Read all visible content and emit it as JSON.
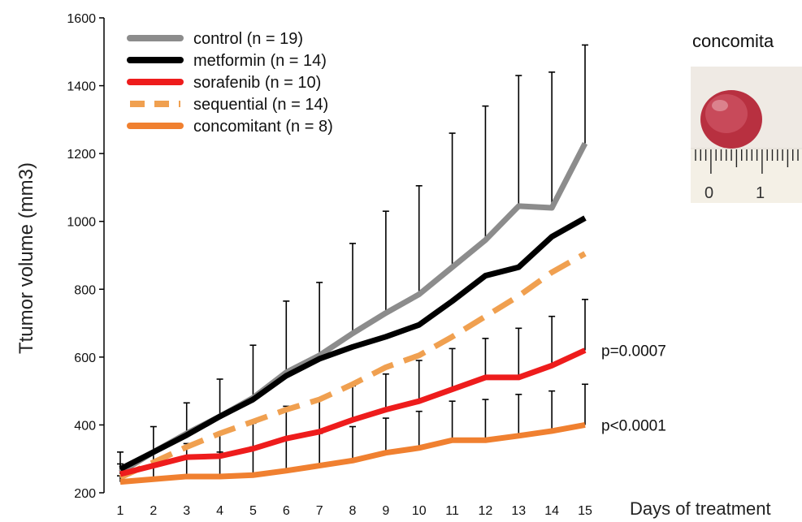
{
  "chart_data": {
    "type": "line",
    "title": "",
    "xlabel": "Days of treatment",
    "ylabel": "Ttumor volume (mm3)",
    "x": [
      1,
      2,
      3,
      4,
      5,
      6,
      7,
      8,
      9,
      10,
      11,
      12,
      13,
      14,
      15
    ],
    "xlim": [
      1,
      15
    ],
    "ylim": [
      200,
      1600
    ],
    "yticks": [
      200,
      400,
      600,
      800,
      1000,
      1200,
      1400,
      1600
    ],
    "grid": false,
    "legend_position": "top-left",
    "series": [
      {
        "name": "control (n = 19)",
        "color": "#8c8c8c",
        "style": "solid",
        "values": [
          260,
          320,
          375,
          425,
          480,
          555,
          605,
          670,
          730,
          785,
          865,
          945,
          1045,
          1040,
          1230
        ],
        "error_upper": [
          320,
          395,
          465,
          535,
          635,
          765,
          820,
          935,
          1030,
          1105,
          1260,
          1340,
          1430,
          1440,
          1520
        ]
      },
      {
        "name": "metformin (n = 14)",
        "color": "#000000",
        "style": "solid",
        "values": [
          270,
          320,
          370,
          425,
          475,
          545,
          595,
          630,
          660,
          695,
          765,
          840,
          865,
          955,
          1010
        ],
        "error_upper": null
      },
      {
        "name": "sorafenib (n = 10)",
        "color": "#ee1c1c",
        "style": "solid",
        "values": [
          255,
          280,
          305,
          308,
          330,
          360,
          380,
          415,
          445,
          470,
          505,
          540,
          540,
          575,
          620
        ],
        "error_upper": [
          285,
          320,
          345,
          375,
          405,
          455,
          475,
          515,
          550,
          590,
          625,
          655,
          685,
          720,
          770
        ]
      },
      {
        "name": "sequential (n = 14)",
        "color": "#f0a050",
        "style": "dashed",
        "values": [
          245,
          290,
          335,
          375,
          410,
          445,
          475,
          520,
          570,
          605,
          660,
          720,
          780,
          850,
          905
        ],
        "error_upper": null
      },
      {
        "name": "concomitant (n = 8)",
        "color": "#f08030",
        "style": "solid",
        "values": [
          232,
          240,
          248,
          248,
          252,
          265,
          280,
          295,
          318,
          332,
          355,
          355,
          368,
          382,
          400
        ],
        "error_upper": [
          250,
          280,
          300,
          320,
          335,
          360,
          375,
          395,
          420,
          440,
          470,
          475,
          490,
          500,
          520
        ]
      }
    ],
    "annotations": [
      {
        "text": "p=0.0007",
        "series": "sorafenib (n = 10)"
      },
      {
        "text": "p<0.0001",
        "series": "concomitant (n = 8)"
      }
    ]
  },
  "photo": {
    "title": "concomita",
    "ruler_labels": [
      "0",
      "1"
    ]
  }
}
